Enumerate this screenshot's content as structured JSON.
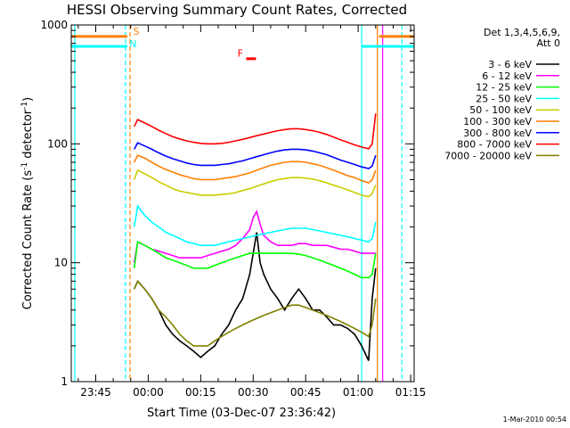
{
  "chart_data": {
    "type": "line",
    "title": "HESSI Observing Summary Count Rates, Corrected",
    "xlabel": "Start Time (03-Dec-07 23:36:42)",
    "ylabel": "Corrected Count Rate (s",
    "ylabel_sup1": "-1",
    "ylabel_mid": " detector",
    "ylabel_sup2": "-1",
    "ylabel_end": ")",
    "yscale": "log",
    "ylim": [
      1,
      1000
    ],
    "xlim_minutes_from_midnight": [
      -22,
      76
    ],
    "x_ticks": [
      {
        "m": -15,
        "label": "23:45"
      },
      {
        "m": 0,
        "label": "00:00"
      },
      {
        "m": 15,
        "label": "00:15"
      },
      {
        "m": 30,
        "label": "00:30"
      },
      {
        "m": 45,
        "label": "00:45"
      },
      {
        "m": 60,
        "label": "01:00"
      },
      {
        "m": 75,
        "label": "01:15"
      }
    ],
    "y_ticks": [
      {
        "v": 1,
        "label": "1"
      },
      {
        "v": 10,
        "label": "10"
      },
      {
        "v": 100,
        "label": "100"
      },
      {
        "v": 1000,
        "label": "1000"
      }
    ],
    "legend_header1": "Det 1,3,4,5,6,9,",
    "legend_header2": "Att 0",
    "series": [
      {
        "name": "3 - 6 keV",
        "color": "#000000",
        "x": [
          -4,
          -3,
          -1,
          1,
          3,
          5,
          7,
          9,
          11,
          13,
          15,
          17,
          19,
          21,
          23,
          25,
          27,
          29,
          30,
          31,
          32,
          33,
          35,
          37,
          39,
          41,
          43,
          45,
          47,
          49,
          51,
          53,
          55,
          57,
          59,
          61,
          63,
          64,
          65
        ],
        "y": [
          6,
          7,
          6,
          5,
          4,
          3,
          2.5,
          2.2,
          2,
          1.8,
          1.6,
          1.8,
          2,
          2.5,
          3,
          4,
          5,
          8,
          12,
          18,
          10,
          8,
          6,
          5,
          4,
          5,
          6,
          5,
          4,
          4,
          3.5,
          3,
          3,
          2.8,
          2.5,
          2,
          1.5,
          5,
          9
        ]
      },
      {
        "name": "6 - 12 keV",
        "color": "#ff00ff",
        "x": [
          -4,
          -3,
          -1,
          1,
          3,
          5,
          7,
          9,
          11,
          13,
          15,
          17,
          19,
          21,
          23,
          25,
          27,
          29,
          30,
          31,
          32,
          33,
          35,
          37,
          39,
          41,
          43,
          45,
          47,
          49,
          51,
          53,
          55,
          57,
          59,
          61,
          63,
          64,
          65
        ],
        "y": [
          10,
          15,
          14,
          13,
          12.5,
          12,
          11.5,
          11,
          11,
          11,
          11,
          11.5,
          12,
          12.5,
          13,
          14,
          16,
          19,
          24,
          27,
          21,
          17,
          15,
          14,
          14,
          14,
          14.5,
          14.5,
          14,
          14,
          14,
          13.5,
          13,
          13,
          12.5,
          12,
          12,
          12,
          12
        ]
      },
      {
        "name": "12 - 25 keV",
        "color": "#00ff00",
        "x": [
          -4,
          -3,
          -1,
          1,
          3,
          5,
          7,
          9,
          11,
          13,
          15,
          17,
          19,
          21,
          23,
          25,
          27,
          29,
          31,
          33,
          35,
          37,
          39,
          41,
          43,
          45,
          47,
          49,
          51,
          53,
          55,
          57,
          59,
          61,
          63,
          64,
          65
        ],
        "y": [
          9,
          15,
          14,
          13,
          12,
          11,
          10.5,
          10,
          9.5,
          9,
          9,
          9,
          9.5,
          10,
          10.5,
          11,
          11.5,
          12,
          12,
          12,
          12,
          12,
          12,
          12,
          11.8,
          11.5,
          11,
          10.5,
          10,
          9.5,
          9,
          8.5,
          8,
          7.5,
          7.5,
          8,
          12
        ]
      },
      {
        "name": "25 - 50 keV",
        "color": "#00ffff",
        "x": [
          -4,
          -3,
          -1,
          1,
          3,
          5,
          7,
          9,
          11,
          13,
          15,
          17,
          19,
          21,
          23,
          25,
          27,
          29,
          31,
          33,
          35,
          37,
          39,
          41,
          43,
          45,
          47,
          49,
          51,
          53,
          55,
          57,
          59,
          61,
          63,
          64,
          65
        ],
        "y": [
          20,
          30,
          25,
          22,
          20,
          18,
          17,
          16,
          15,
          14.5,
          14,
          14,
          14,
          14.5,
          15,
          15.5,
          16,
          16.5,
          17,
          17.5,
          18,
          18.5,
          19,
          19.5,
          19.5,
          19.5,
          19,
          18.5,
          18,
          17.5,
          17,
          16.5,
          16,
          15.5,
          15,
          16,
          22
        ]
      },
      {
        "name": "50 - 100 keV",
        "color": "#cccc00",
        "x": [
          -4,
          -3,
          -1,
          1,
          3,
          5,
          7,
          9,
          11,
          13,
          15,
          17,
          19,
          21,
          23,
          25,
          27,
          29,
          31,
          33,
          35,
          37,
          39,
          41,
          43,
          45,
          47,
          49,
          51,
          53,
          55,
          57,
          59,
          61,
          63,
          64,
          65
        ],
        "y": [
          50,
          60,
          56,
          52,
          48,
          45,
          42,
          40,
          39,
          38,
          37,
          37,
          37,
          37.5,
          38,
          39,
          40.5,
          42,
          44,
          46,
          48,
          50,
          51,
          52,
          52,
          51.5,
          50.5,
          49,
          47,
          45,
          43,
          41,
          39,
          37,
          36,
          38,
          45
        ]
      },
      {
        "name": "100 - 300 keV",
        "color": "#ff7f00",
        "x": [
          -4,
          -3,
          -1,
          1,
          3,
          5,
          7,
          9,
          11,
          13,
          15,
          17,
          19,
          21,
          23,
          25,
          27,
          29,
          31,
          33,
          35,
          37,
          39,
          41,
          43,
          45,
          47,
          49,
          51,
          53,
          55,
          57,
          59,
          61,
          63,
          64,
          65
        ],
        "y": [
          70,
          80,
          76,
          70,
          65,
          61,
          58,
          55,
          53,
          51,
          50,
          50,
          50,
          51,
          52,
          53,
          55,
          57,
          60,
          63,
          66,
          68,
          70,
          71,
          71,
          70,
          68,
          66,
          63,
          60,
          57,
          54,
          52,
          49,
          47,
          50,
          60
        ]
      },
      {
        "name": "300 - 800 keV",
        "color": "#0000ff",
        "x": [
          -4,
          -3,
          -1,
          1,
          3,
          5,
          7,
          9,
          11,
          13,
          15,
          17,
          19,
          21,
          23,
          25,
          27,
          29,
          31,
          33,
          35,
          37,
          39,
          41,
          43,
          45,
          47,
          49,
          51,
          53,
          55,
          57,
          59,
          61,
          63,
          64,
          65
        ],
        "y": [
          90,
          102,
          96,
          90,
          84,
          79,
          75,
          72,
          69,
          67,
          66,
          66,
          66,
          67,
          68,
          70,
          72,
          75,
          78,
          81,
          84,
          87,
          89,
          90,
          90,
          89,
          87,
          84,
          81,
          77,
          73,
          70,
          67,
          64,
          62,
          65,
          80
        ]
      },
      {
        "name": "800 - 7000 keV",
        "color": "#ff0000",
        "x": [
          -4,
          -3,
          -1,
          1,
          3,
          5,
          7,
          9,
          11,
          13,
          15,
          17,
          19,
          21,
          23,
          25,
          27,
          29,
          31,
          33,
          35,
          37,
          39,
          41,
          43,
          45,
          47,
          49,
          51,
          53,
          55,
          57,
          59,
          61,
          63,
          64,
          65
        ],
        "y": [
          140,
          160,
          150,
          140,
          130,
          122,
          115,
          110,
          106,
          103,
          101,
          100,
          100,
          101,
          103,
          106,
          109,
          113,
          117,
          121,
          125,
          129,
          132,
          134,
          134,
          132,
          129,
          125,
          120,
          114,
          108,
          103,
          98,
          94,
          91,
          100,
          180
        ]
      },
      {
        "name": "7000 - 20000 keV",
        "color": "#808000",
        "x": [
          -4,
          -3,
          -1,
          1,
          3,
          5,
          7,
          9,
          11,
          13,
          15,
          17,
          19,
          21,
          23,
          25,
          27,
          29,
          31,
          33,
          35,
          37,
          39,
          41,
          43,
          45,
          47,
          49,
          51,
          53,
          55,
          57,
          59,
          61,
          63,
          64,
          65
        ],
        "y": [
          6,
          7,
          6,
          5,
          4,
          3.5,
          3,
          2.5,
          2.2,
          2,
          2,
          2,
          2.2,
          2.4,
          2.6,
          2.8,
          3,
          3.2,
          3.4,
          3.6,
          3.8,
          4,
          4.2,
          4.4,
          4.4,
          4.2,
          4,
          3.8,
          3.6,
          3.4,
          3.2,
          3,
          2.8,
          2.6,
          2.4,
          3,
          5
        ]
      }
    ],
    "vertical_lines": [
      {
        "m": -21,
        "color": "#00ffff",
        "style": "solid"
      },
      {
        "m": -6.5,
        "color": "#00ffff",
        "style": "dashed"
      },
      {
        "m": -5.2,
        "color": "#ff7f00",
        "style": "dashed"
      },
      {
        "m": 61,
        "color": "#00ffff",
        "style": "solid"
      },
      {
        "m": 65.5,
        "color": "#ff7f00",
        "style": "solid"
      },
      {
        "m": 67,
        "color": "#ff00ff",
        "style": "solid"
      },
      {
        "m": 72.5,
        "color": "#00ffff",
        "style": "dashed"
      }
    ],
    "flag_bars": [
      {
        "x1": -22,
        "x2": -6,
        "v": 800,
        "color": "#ff7f00"
      },
      {
        "x1": -22,
        "x2": -6,
        "v": 660,
        "color": "#00ffff"
      },
      {
        "x1": 61,
        "x2": 76,
        "v": 660,
        "color": "#00ffff"
      },
      {
        "x1": 66,
        "x2": 76,
        "v": 800,
        "color": "#ff7f00"
      }
    ],
    "annotations": [
      {
        "text": "S",
        "m": -4.3,
        "v": 830,
        "color": "#ff7f00"
      },
      {
        "text": "N",
        "m": -5.4,
        "v": 650,
        "color": "#00ffff"
      },
      {
        "text": "F",
        "m": 25.5,
        "v": 540,
        "color": "#ff0000"
      }
    ],
    "flare_bar": {
      "x1": 28,
      "x2": 30.8,
      "v": 520,
      "color": "#ff0000"
    },
    "timestamp": "1-Mar-2010 00:54"
  }
}
